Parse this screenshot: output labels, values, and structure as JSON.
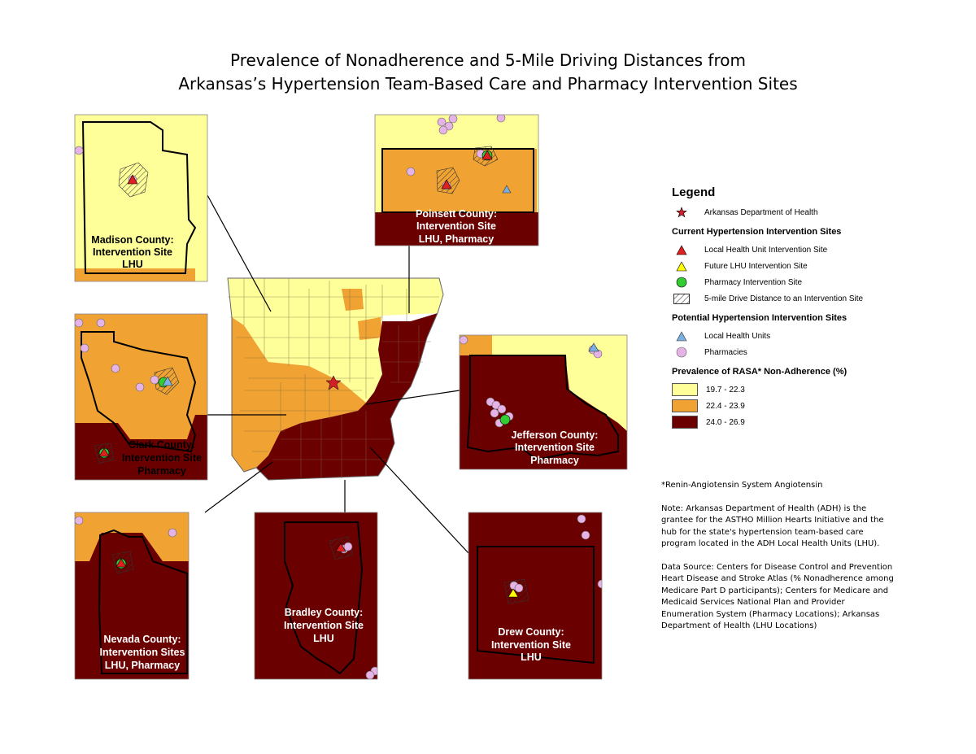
{
  "title": {
    "line1": "Prevalence of Nonadherence and 5-Mile Driving Distances from",
    "line2": "Arkansas’s Hypertension Team-Based Care and Pharmacy Intervention Sites"
  },
  "colors": {
    "low": "#ffff99",
    "mid": "#f0a333",
    "high": "#6b0000",
    "adh_star": "#d0202a",
    "lhu_site": "#e02020",
    "future_lhu": "#ffff00",
    "pharmacy_site": "#33cc33",
    "local_health_unit": "#7ab0e0",
    "pharmacy": "#e6b3e6"
  },
  "insets": [
    {
      "county": "Madison County:",
      "line2": "Intervention Site",
      "line3": "LHU",
      "nonadherence_class": "19.7 - 22.3"
    },
    {
      "county": "Poinsett County:",
      "line2": "Intervention Site",
      "line3": "LHU, Pharmacy",
      "nonadherence_class": "22.4 - 23.9"
    },
    {
      "county": "Clark County:",
      "line2": "Intervention Site",
      "line3": "Pharmacy",
      "nonadherence_class": "22.4 - 23.9"
    },
    {
      "county": "Jefferson County:",
      "line2": "Intervention Site",
      "line3": "Pharmacy",
      "nonadherence_class": "24.0 - 26.9"
    },
    {
      "county": "Nevada County:",
      "line2": "Intervention Sites",
      "line3": "LHU, Pharmacy",
      "nonadherence_class": "24.0 - 26.9"
    },
    {
      "county": "Bradley County:",
      "line2": "Intervention Site",
      "line3": "LHU",
      "nonadherence_class": "24.0 - 26.9"
    },
    {
      "county": "Drew County:",
      "line2": "Intervention Site",
      "line3": "LHU",
      "nonadherence_class": "24.0 - 26.9"
    }
  ],
  "legend": {
    "title": "Legend",
    "adh": "Arkansas Department of Health",
    "current_heading": "Current Hypertension Intervention Sites",
    "lhu_site": "Local Health Unit Intervention Site",
    "future_lhu": "Future LHU Intervention Site",
    "pharmacy_site": "Pharmacy Intervention Site",
    "drive_distance": "5-mile Drive Distance to an Intervention Site",
    "potential_heading": "Potential Hypertension Intervention Sites",
    "local_health_units": "Local Health Units",
    "pharmacies": "Pharmacies",
    "prevalence_heading": "Prevalence of RASA* Non-Adherence (%)",
    "classes": [
      "19.7 - 22.3",
      "22.4 - 23.9",
      "24.0 - 26.9"
    ]
  },
  "notes": {
    "footnote": "*Renin-Angiotensin System Angiotensin",
    "note": "Note:  Arkansas Department of Health (ADH) is the grantee for the ASTHO Million Hearts Initiative and the hub for the state's hypertension team-based care program located in the ADH Local Health Units (LHU).",
    "source": "Data Source: Centers for Disease Control and Prevention Heart Disease and Stroke Atlas (% Nonadherence among Medicare Part D participants); Centers for Medicare and Medicaid Services National Plan and Provider Enumeration System (Pharmacy Locations); Arkansas Department of Health (LHU Locations)"
  }
}
